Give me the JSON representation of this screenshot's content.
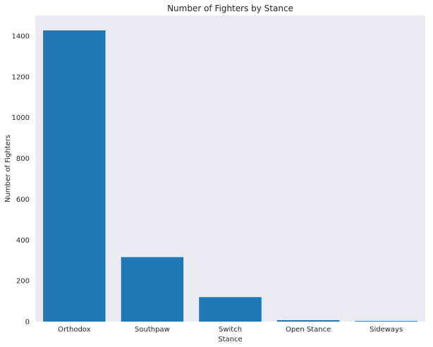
{
  "chart_data": {
    "type": "bar",
    "title": "Number of Fighters by Stance",
    "xlabel": "Stance",
    "ylabel": "Number of Fighters",
    "categories": [
      "Orthodox",
      "Southpaw",
      "Switch",
      "Open Stance",
      "Sideways"
    ],
    "values": [
      1427,
      316,
      120,
      7,
      3
    ],
    "ylim": [
      0,
      1500
    ],
    "yticks": [
      0,
      200,
      400,
      600,
      800,
      1000,
      1200,
      1400
    ],
    "grid": false,
    "bar_color": "#1f77b4",
    "plot_background": "#eaeaf2"
  }
}
